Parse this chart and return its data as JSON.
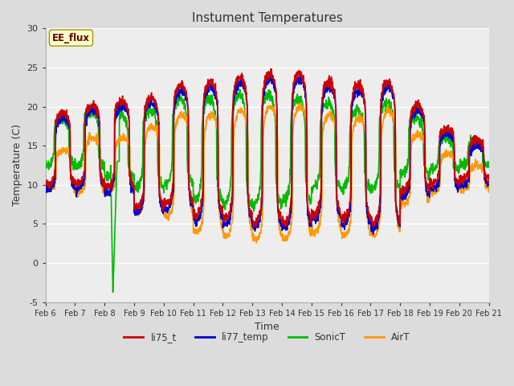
{
  "title": "Instument Temperatures",
  "xlabel": "Time",
  "ylabel": "Temperature (C)",
  "ylim": [
    -5,
    30
  ],
  "annotation_text": "EE_flux",
  "series": {
    "li75_t": {
      "color": "#cc0000",
      "lw": 1.2
    },
    "li77_temp": {
      "color": "#0000cc",
      "lw": 1.2
    },
    "SonicT": {
      "color": "#00bb00",
      "lw": 1.2
    },
    "AirT": {
      "color": "#ff9900",
      "lw": 1.2
    }
  },
  "legend_labels": [
    "li75_t",
    "li77_temp",
    "SonicT",
    "AirT"
  ],
  "legend_colors": [
    "#cc0000",
    "#0000cc",
    "#00bb00",
    "#ff9900"
  ],
  "xtick_labels": [
    "Feb 6",
    "Feb 7",
    "Feb 8",
    "Feb 9",
    "Feb 10",
    "Feb 11",
    "Feb 12",
    "Feb 13",
    "Feb 14",
    "Feb 15",
    "Feb 16",
    "Feb 17",
    "Feb 18",
    "Feb 19",
    "Feb 20",
    "Feb 21"
  ],
  "bg_color": "#dcdcdc",
  "plot_bg": "#dcdcdc",
  "white_band_color": "#c8c8c8",
  "grid_color": "#ffffff",
  "annotation_box_color": "#ffffcc",
  "annotation_text_color": "#660000",
  "title_color": "#333333",
  "axis_label_color": "#333333",
  "tick_label_color": "#333333"
}
